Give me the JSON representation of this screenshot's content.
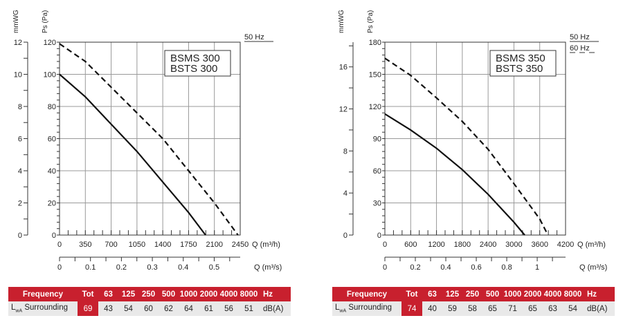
{
  "chart_data": [
    {
      "type": "line",
      "title": "BSMS 300 / BSTS 300",
      "model_lines": [
        "BSMS 300",
        "BSTS 300"
      ],
      "ylabel": "Ps (Pa)",
      "ylabel2": "mmWG",
      "xlabel": "Q (m³/h)",
      "xlabel2": "Q (m³/s)",
      "xlim": [
        0,
        2450
      ],
      "ylim": [
        0,
        120
      ],
      "y2lim": [
        0,
        12
      ],
      "x2lim": [
        0,
        0.584
      ],
      "xticks": [
        0,
        350,
        700,
        1050,
        1400,
        1750,
        2100,
        2450
      ],
      "yticks": [
        0,
        20,
        40,
        60,
        80,
        100,
        120
      ],
      "y2ticks": [
        0,
        2,
        4,
        6,
        8,
        10,
        12
      ],
      "x2ticks": [
        0,
        0.1,
        0.2,
        0.3,
        0.4,
        0.5
      ],
      "grid": true,
      "legend": [
        {
          "label": "50 Hz",
          "style": "solid"
        }
      ],
      "series": [
        {
          "name": "50 Hz",
          "style": "solid",
          "x": [
            0,
            350,
            700,
            1050,
            1400,
            1750,
            1980
          ],
          "y": [
            100,
            86,
            69,
            52,
            33,
            14,
            0
          ]
        },
        {
          "name": "dashed",
          "style": "dashed",
          "x": [
            0,
            350,
            700,
            1050,
            1400,
            1750,
            2100,
            2420
          ],
          "y": [
            119,
            108,
            92,
            76,
            60,
            40,
            20,
            0
          ]
        }
      ]
    },
    {
      "type": "line",
      "title": "BSMS 350 / BSTS 350",
      "model_lines": [
        "BSMS 350",
        "BSTS 350"
      ],
      "ylabel": "Ps (Pa)",
      "ylabel2": "mmWG",
      "xlabel": "Q (m³/h)",
      "xlabel2": "Q (m³/s)",
      "xlim": [
        0,
        4200
      ],
      "ylim": [
        0,
        180
      ],
      "y2lim": [
        0,
        18.35
      ],
      "x2lim": [
        0,
        1.186
      ],
      "xticks": [
        0,
        600,
        1200,
        1800,
        2400,
        3000,
        3600,
        4200
      ],
      "yticks": [
        0,
        30,
        60,
        90,
        120,
        150,
        180
      ],
      "y2ticks": [
        0,
        4,
        8,
        12,
        16
      ],
      "x2ticks": [
        0,
        0.2,
        0.4,
        0.6,
        0.8,
        1.0
      ],
      "grid": true,
      "legend": [
        {
          "label": "50 Hz",
          "style": "solid"
        },
        {
          "label": "60 Hz",
          "style": "dashed"
        }
      ],
      "series": [
        {
          "name": "50 Hz",
          "style": "solid",
          "x": [
            0,
            600,
            1200,
            1800,
            2400,
            3000,
            3250
          ],
          "y": [
            113,
            98,
            81,
            61,
            38,
            12,
            0
          ]
        },
        {
          "name": "60 Hz",
          "style": "dashed",
          "x": [
            0,
            600,
            1200,
            1800,
            2400,
            3000,
            3600,
            3790
          ],
          "y": [
            165,
            149,
            128,
            106,
            80,
            48,
            15,
            0
          ]
        }
      ]
    }
  ],
  "tables": [
    {
      "header": "Frequency",
      "tot_label": "Tot",
      "bands": [
        "63",
        "125",
        "250",
        "500",
        "1000",
        "2000",
        "4000",
        "8000"
      ],
      "hz": "Hz",
      "row_label_main": "L",
      "row_label_sub": "wA",
      "row_label_rest": " Surrounding",
      "tot": "69",
      "values": [
        "43",
        "54",
        "60",
        "62",
        "64",
        "61",
        "56",
        "51"
      ],
      "unit": "dB(A)"
    },
    {
      "header": "Frequency",
      "tot_label": "Tot",
      "bands": [
        "63",
        "125",
        "250",
        "500",
        "1000",
        "2000",
        "4000",
        "8000"
      ],
      "hz": "Hz",
      "row_label_main": "L",
      "row_label_sub": "wA",
      "row_label_rest": " Surrounding",
      "tot": "74",
      "values": [
        "40",
        "59",
        "58",
        "65",
        "71",
        "65",
        "63",
        "54"
      ],
      "unit": "dB(A)"
    }
  ]
}
